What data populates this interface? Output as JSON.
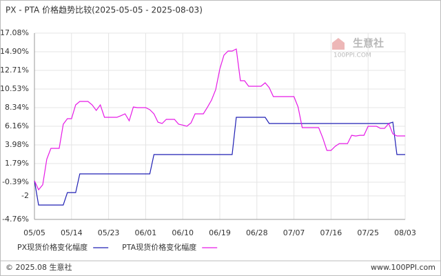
{
  "chart_data": {
    "type": "line",
    "title": "PX - PTA 价格趋势比较(2025-05-05 - 2025-08-03)",
    "watermark": {
      "name": "生意社",
      "site": "100PPI.COM"
    },
    "footer": {
      "left": "© 2025.08 生意社",
      "right": "www.100PPI.com"
    },
    "categories": [
      "05/05",
      null,
      null,
      null,
      null,
      null,
      null,
      null,
      null,
      "05/14",
      null,
      null,
      null,
      null,
      null,
      null,
      null,
      null,
      "05/23",
      null,
      null,
      null,
      null,
      null,
      null,
      null,
      null,
      "06/01",
      null,
      null,
      null,
      null,
      null,
      null,
      null,
      null,
      "06/10",
      null,
      null,
      null,
      null,
      null,
      null,
      null,
      null,
      "06/19",
      null,
      null,
      null,
      null,
      null,
      null,
      null,
      null,
      "06/28",
      null,
      null,
      null,
      null,
      null,
      null,
      null,
      null,
      "07/07",
      null,
      null,
      null,
      null,
      null,
      null,
      null,
      null,
      "07/16",
      null,
      null,
      null,
      null,
      null,
      null,
      null,
      null,
      "07/25",
      null,
      null,
      null,
      null,
      null,
      null,
      null,
      null,
      "08/03"
    ],
    "series": [
      {
        "name": "PX现货价格变化幅度",
        "color": "#1f1fb4",
        "values": [
          -0.23,
          -3.07,
          -3.07,
          -3.07,
          -3.07,
          -3.07,
          -3.07,
          -3.07,
          -1.61,
          -1.61,
          -1.61,
          0.58,
          0.58,
          0.58,
          0.58,
          0.58,
          0.58,
          0.58,
          0.58,
          0.58,
          0.58,
          0.58,
          0.58,
          0.58,
          0.58,
          0.58,
          0.58,
          0.58,
          0.58,
          2.84,
          2.84,
          2.84,
          2.84,
          2.84,
          2.84,
          2.84,
          2.84,
          2.84,
          2.84,
          2.84,
          2.84,
          2.84,
          2.84,
          2.84,
          2.84,
          2.84,
          2.84,
          2.84,
          2.84,
          7.21,
          7.21,
          7.21,
          7.21,
          7.21,
          7.21,
          7.21,
          7.21,
          6.48,
          6.48,
          6.48,
          6.48,
          6.48,
          6.48,
          6.48,
          6.48,
          6.48,
          6.48,
          6.48,
          6.48,
          6.48,
          6.48,
          6.48,
          6.48,
          6.48,
          6.48,
          6.48,
          6.48,
          6.48,
          6.48,
          6.48,
          6.48,
          6.48,
          6.48,
          6.48,
          6.48,
          6.48,
          6.48,
          6.64,
          2.84,
          2.84,
          2.84
        ]
      },
      {
        "name": "PTA现货价格变化幅度",
        "color": "#e619e6",
        "values": [
          -0.23,
          -1.28,
          -0.7,
          2.3,
          3.57,
          3.57,
          3.57,
          6.4,
          7.05,
          7.05,
          8.67,
          9.07,
          9.07,
          9.07,
          8.67,
          8.02,
          8.67,
          7.21,
          7.21,
          7.21,
          7.21,
          7.4,
          7.62,
          6.81,
          8.42,
          8.34,
          8.34,
          8.34,
          8.1,
          7.62,
          6.64,
          6.48,
          6.97,
          6.97,
          6.97,
          6.4,
          6.3,
          6.16,
          6.56,
          7.62,
          7.62,
          7.62,
          8.4,
          9.23,
          10.45,
          12.87,
          14.49,
          14.98,
          14.98,
          15.22,
          11.5,
          11.5,
          10.85,
          10.85,
          10.85,
          10.85,
          11.26,
          10.69,
          9.64,
          9.64,
          9.64,
          9.64,
          9.64,
          9.64,
          8.42,
          6.0,
          6.0,
          6.0,
          6.0,
          6.0,
          4.8,
          3.33,
          3.33,
          3.81,
          4.13,
          4.13,
          4.13,
          5.1,
          5.02,
          5.1,
          5.1,
          6.16,
          6.16,
          6.16,
          5.92,
          5.92,
          6.48,
          5.27,
          5.03,
          5.03,
          5.03
        ]
      }
    ],
    "ylim": [
      -4.76,
      17.08
    ],
    "yticks": [
      {
        "value": 17.08,
        "label": "17.08%"
      },
      {
        "value": 14.9,
        "label": "14.90%"
      },
      {
        "value": 12.71,
        "label": "12.71%"
      },
      {
        "value": 10.53,
        "label": "10.53%"
      },
      {
        "value": 8.34,
        "label": "8.34%"
      },
      {
        "value": 6.16,
        "label": "6.16%"
      },
      {
        "value": 3.98,
        "label": "3.98%"
      },
      {
        "value": 1.79,
        "label": "1.79%"
      },
      {
        "value": -0.39,
        "label": "-0.39%"
      },
      -2,
      {
        "value": -4.76,
        "label": "-4.76%"
      }
    ],
    "grid": true
  }
}
